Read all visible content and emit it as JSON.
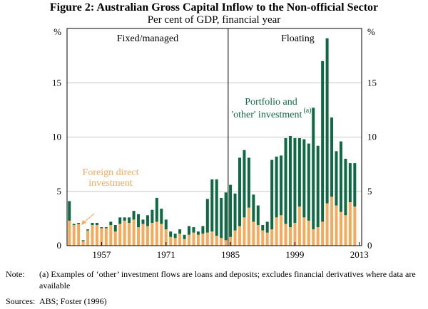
{
  "title": "Figure 2: Australian Gross Capital Inflow to the Non-official Sector",
  "subtitle": "Per cent of GDP, financial year",
  "chart_data": {
    "type": "bar",
    "stacked": true,
    "x_start": 1950,
    "x_end": 2013,
    "xlabel": "",
    "ylabel": "%",
    "ylim": [
      0,
      20
    ],
    "y_ticks": [
      0,
      5,
      10,
      15
    ],
    "y_unit": "%",
    "x_ticks": [
      "1957",
      "1971",
      "1985",
      "1999",
      "2013"
    ],
    "regime_break": 1984.5,
    "regime_labels": [
      "Fixed/managed",
      "Floating"
    ],
    "colors": {
      "fdi": "#f5a95b",
      "portfolio": "#0f6a44",
      "grid": "#c8c8c8",
      "axis": "#000000"
    },
    "series": [
      {
        "name": "Foreign direct investment",
        "legend": "Foreign direct investment",
        "values": [
          2.3,
          1.9,
          2.0,
          0.4,
          1.4,
          1.9,
          1.9,
          1.6,
          1.6,
          1.9,
          1.3,
          2.0,
          2.3,
          2.1,
          2.4,
          1.7,
          2.0,
          1.8,
          2.1,
          2.2,
          2.0,
          1.5,
          0.8,
          0.7,
          1.1,
          0.6,
          1.0,
          1.2,
          1.0,
          1.1,
          1.2,
          1.3,
          0.9,
          0.7,
          0.5,
          0.8,
          1.4,
          1.8,
          2.6,
          3.5,
          2.2,
          1.9,
          1.4,
          1.2,
          1.5,
          2.6,
          2.8,
          2.0,
          1.7,
          2.1,
          3.6,
          2.6,
          2.3,
          1.5,
          1.7,
          2.2,
          3.9,
          4.5,
          3.7,
          3.1,
          2.8,
          4.0,
          3.6
        ]
      },
      {
        "name": "Portfolio and 'other' investment",
        "legend": "Portfolio and 'other' investment",
        "annotation": "(a)",
        "values": [
          1.8,
          0.1,
          0.1,
          0.1,
          0.1,
          0.2,
          0.2,
          0.1,
          0.1,
          0.3,
          0.6,
          0.6,
          0.3,
          0.5,
          0.8,
          1.2,
          0.4,
          1.0,
          1.2,
          2.2,
          1.4,
          0.9,
          0.5,
          0.4,
          0.4,
          0.4,
          0.8,
          0.5,
          0.3,
          0.7,
          3.1,
          4.8,
          5.2,
          3.7,
          4.4,
          4.8,
          3.4,
          6.3,
          6.2,
          4.6,
          2.5,
          1.8,
          0.5,
          1.0,
          6.4,
          5.6,
          5.5,
          7.9,
          8.4,
          7.8,
          6.3,
          7.2,
          7.1,
          11.2,
          7.5,
          14.8,
          15.2,
          7.3,
          5.0,
          6.5,
          5.2,
          3.6,
          4.0
        ]
      }
    ],
    "annotations": [
      "Foreign direct investment",
      "Portfolio and",
      "'other' investment",
      "(a)"
    ]
  },
  "notes": {
    "note_label": "Note:",
    "note_text": "(a) Examples of ‘other’ investment flows are loans and deposits; excludes financial derivatives where data are available",
    "sources_label": "Sources:",
    "sources_text": "ABS; Foster (1996)"
  }
}
